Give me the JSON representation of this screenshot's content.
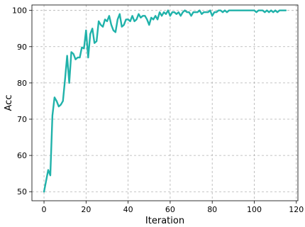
{
  "chart_data": {
    "type": "line",
    "title": "",
    "xlabel": "Iteration",
    "ylabel": "Acc",
    "xlim": [
      -5.75,
      120.75
    ],
    "ylim": [
      47.5,
      101.5
    ],
    "xticks": [
      0,
      20,
      40,
      60,
      80,
      100,
      120
    ],
    "xtick_labels": [
      "0",
      "20",
      "40",
      "60",
      "80",
      "100",
      "120"
    ],
    "yticks": [
      50,
      60,
      70,
      80,
      90,
      100
    ],
    "ytick_labels": [
      "50",
      "60",
      "70",
      "80",
      "90",
      "100"
    ],
    "grid": true,
    "legend": "none",
    "series": [
      {
        "color": "#20b2aa",
        "x": [
          0,
          1,
          2,
          3,
          4,
          5,
          6,
          7,
          8,
          9,
          10,
          11,
          12,
          13,
          14,
          15,
          16,
          17,
          18,
          19,
          20,
          21,
          22,
          23,
          24,
          25,
          26,
          27,
          28,
          29,
          30,
          31,
          32,
          33,
          34,
          35,
          36,
          37,
          38,
          39,
          40,
          41,
          42,
          43,
          44,
          45,
          46,
          47,
          48,
          49,
          50,
          51,
          52,
          53,
          54,
          55,
          56,
          57,
          58,
          59,
          60,
          61,
          62,
          63,
          64,
          65,
          66,
          67,
          68,
          69,
          70,
          71,
          72,
          73,
          74,
          75,
          76,
          77,
          78,
          79,
          80,
          81,
          82,
          83,
          84,
          85,
          86,
          87,
          88,
          89,
          90,
          91,
          92,
          93,
          94,
          95,
          96,
          97,
          98,
          99,
          100,
          101,
          102,
          103,
          104,
          105,
          106,
          107,
          108,
          109,
          110,
          111,
          112,
          113,
          114,
          115
        ],
        "values": [
          50,
          53,
          56,
          54.5,
          71,
          76,
          75,
          73.5,
          74,
          75,
          81,
          87.5,
          80,
          88.5,
          88,
          86.5,
          87,
          87,
          89.8,
          89.5,
          94.5,
          87,
          93.5,
          95,
          91,
          91.5,
          97,
          96,
          95.5,
          97.5,
          97,
          98.5,
          96,
          94.5,
          94,
          97.5,
          99,
          95.5,
          96,
          97.5,
          97.5,
          97,
          98.5,
          97,
          97.5,
          99,
          98,
          98.5,
          98.5,
          97.5,
          96,
          98,
          97.5,
          98.5,
          97.5,
          99.5,
          98.5,
          99.5,
          99,
          100,
          98.5,
          99.5,
          99.5,
          99,
          99.5,
          98.5,
          99.5,
          100,
          99.5,
          99.5,
          98.5,
          99.5,
          99.5,
          99.5,
          100,
          99,
          99.5,
          99.5,
          99.5,
          100,
          98.5,
          99.5,
          99.5,
          100,
          100,
          99.5,
          100,
          99.5,
          100,
          100,
          100,
          100,
          100,
          100,
          100,
          100,
          100,
          100,
          100,
          100,
          100,
          99.5,
          100,
          100,
          100,
          99.5,
          100,
          99.5,
          100,
          99.5,
          100,
          99.5,
          100,
          100,
          100,
          100
        ]
      }
    ]
  }
}
